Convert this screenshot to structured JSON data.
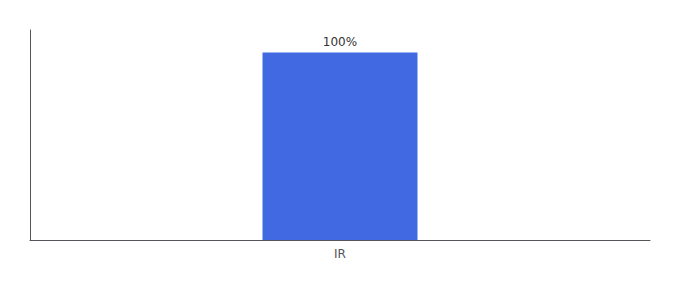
{
  "chart_data": {
    "type": "bar",
    "categories": [
      "IR"
    ],
    "values": [
      100
    ],
    "value_labels": [
      "100%"
    ],
    "data_labels": true,
    "color": "#4169E1",
    "ylim": [
      0,
      112
    ],
    "tick_labels": "x",
    "grid": false
  }
}
